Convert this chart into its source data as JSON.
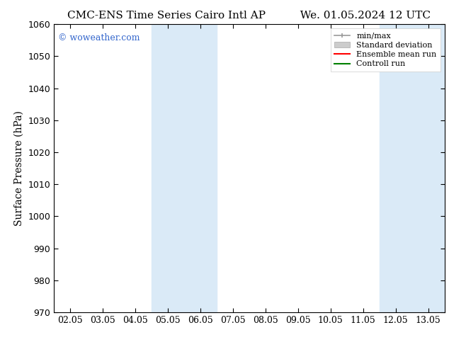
{
  "title_left": "CMC-ENS Time Series Cairo Intl AP",
  "title_right": "We. 01.05.2024 12 UTC",
  "ylabel": "Surface Pressure (hPa)",
  "ylim": [
    970,
    1060
  ],
  "yticks": [
    970,
    980,
    990,
    1000,
    1010,
    1020,
    1030,
    1040,
    1050,
    1060
  ],
  "xtick_labels": [
    "02.05",
    "03.05",
    "04.05",
    "05.05",
    "06.05",
    "07.05",
    "08.05",
    "09.05",
    "10.05",
    "11.05",
    "12.05",
    "13.05"
  ],
  "xtick_positions": [
    0,
    1,
    2,
    3,
    4,
    5,
    6,
    7,
    8,
    9,
    10,
    11
  ],
  "xlim": [
    -0.5,
    11.5
  ],
  "shaded_regions": [
    {
      "xmin": 2.5,
      "xmax": 4.5,
      "color": "#daeaf7"
    },
    {
      "xmin": 9.5,
      "xmax": 11.5,
      "color": "#daeaf7"
    }
  ],
  "watermark_text": "© woweather.com",
  "watermark_color": "#3366cc",
  "bg_color": "#ffffff",
  "legend_items": [
    {
      "label": "min/max",
      "type": "hline_caps",
      "color": "#999999"
    },
    {
      "label": "Standard deviation",
      "type": "patch",
      "color": "#cccccc"
    },
    {
      "label": "Ensemble mean run",
      "type": "line",
      "color": "#ff0000"
    },
    {
      "label": "Controll run",
      "type": "line",
      "color": "#008000"
    }
  ],
  "font_family": "DejaVu Serif",
  "title_fontsize": 11,
  "tick_fontsize": 9,
  "ylabel_fontsize": 10,
  "watermark_fontsize": 9,
  "legend_fontsize": 8
}
